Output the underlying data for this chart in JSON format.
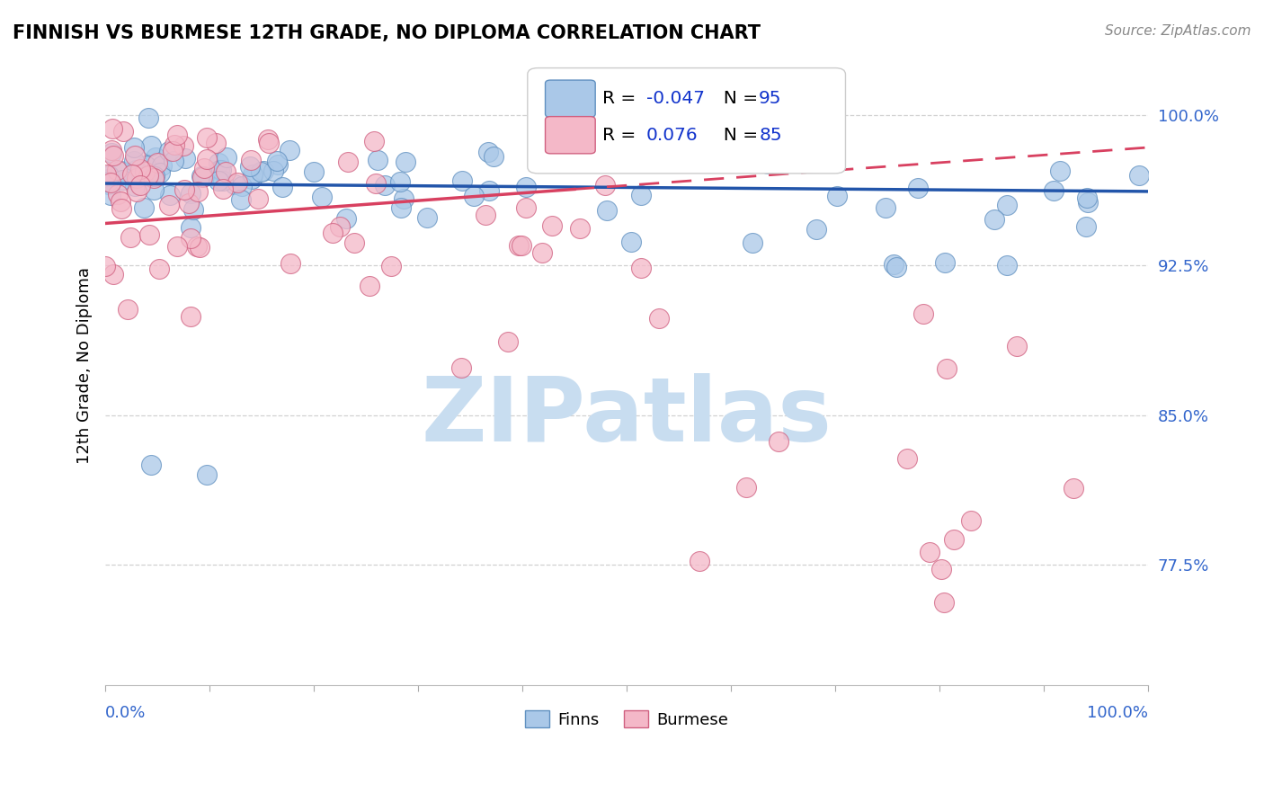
{
  "title": "FINNISH VS BURMESE 12TH GRADE, NO DIPLOMA CORRELATION CHART",
  "source_text": "Source: ZipAtlas.com",
  "ylabel": "12th Grade, No Diploma",
  "ytick_labels": [
    "77.5%",
    "85.0%",
    "92.5%",
    "100.0%"
  ],
  "ytick_values": [
    0.775,
    0.85,
    0.925,
    1.0
  ],
  "xlim": [
    0.0,
    1.0
  ],
  "ylim": [
    0.715,
    1.035
  ],
  "finns_color": "#aac8e8",
  "burmese_color": "#f4b8c8",
  "finns_edge": "#6090c0",
  "burmese_edge": "#d06080",
  "finns_R": -0.047,
  "finns_N": 95,
  "burmese_R": 0.076,
  "burmese_N": 85,
  "trend_blue_color": "#2255aa",
  "trend_pink_color": "#d84060",
  "watermark_text": "ZIPatlas",
  "watermark_color": "#c8ddf0",
  "legend_r_color": "#1133cc",
  "legend_n_color": "#1133cc",
  "tick_color": "#3366cc",
  "grid_color": "#cccccc"
}
